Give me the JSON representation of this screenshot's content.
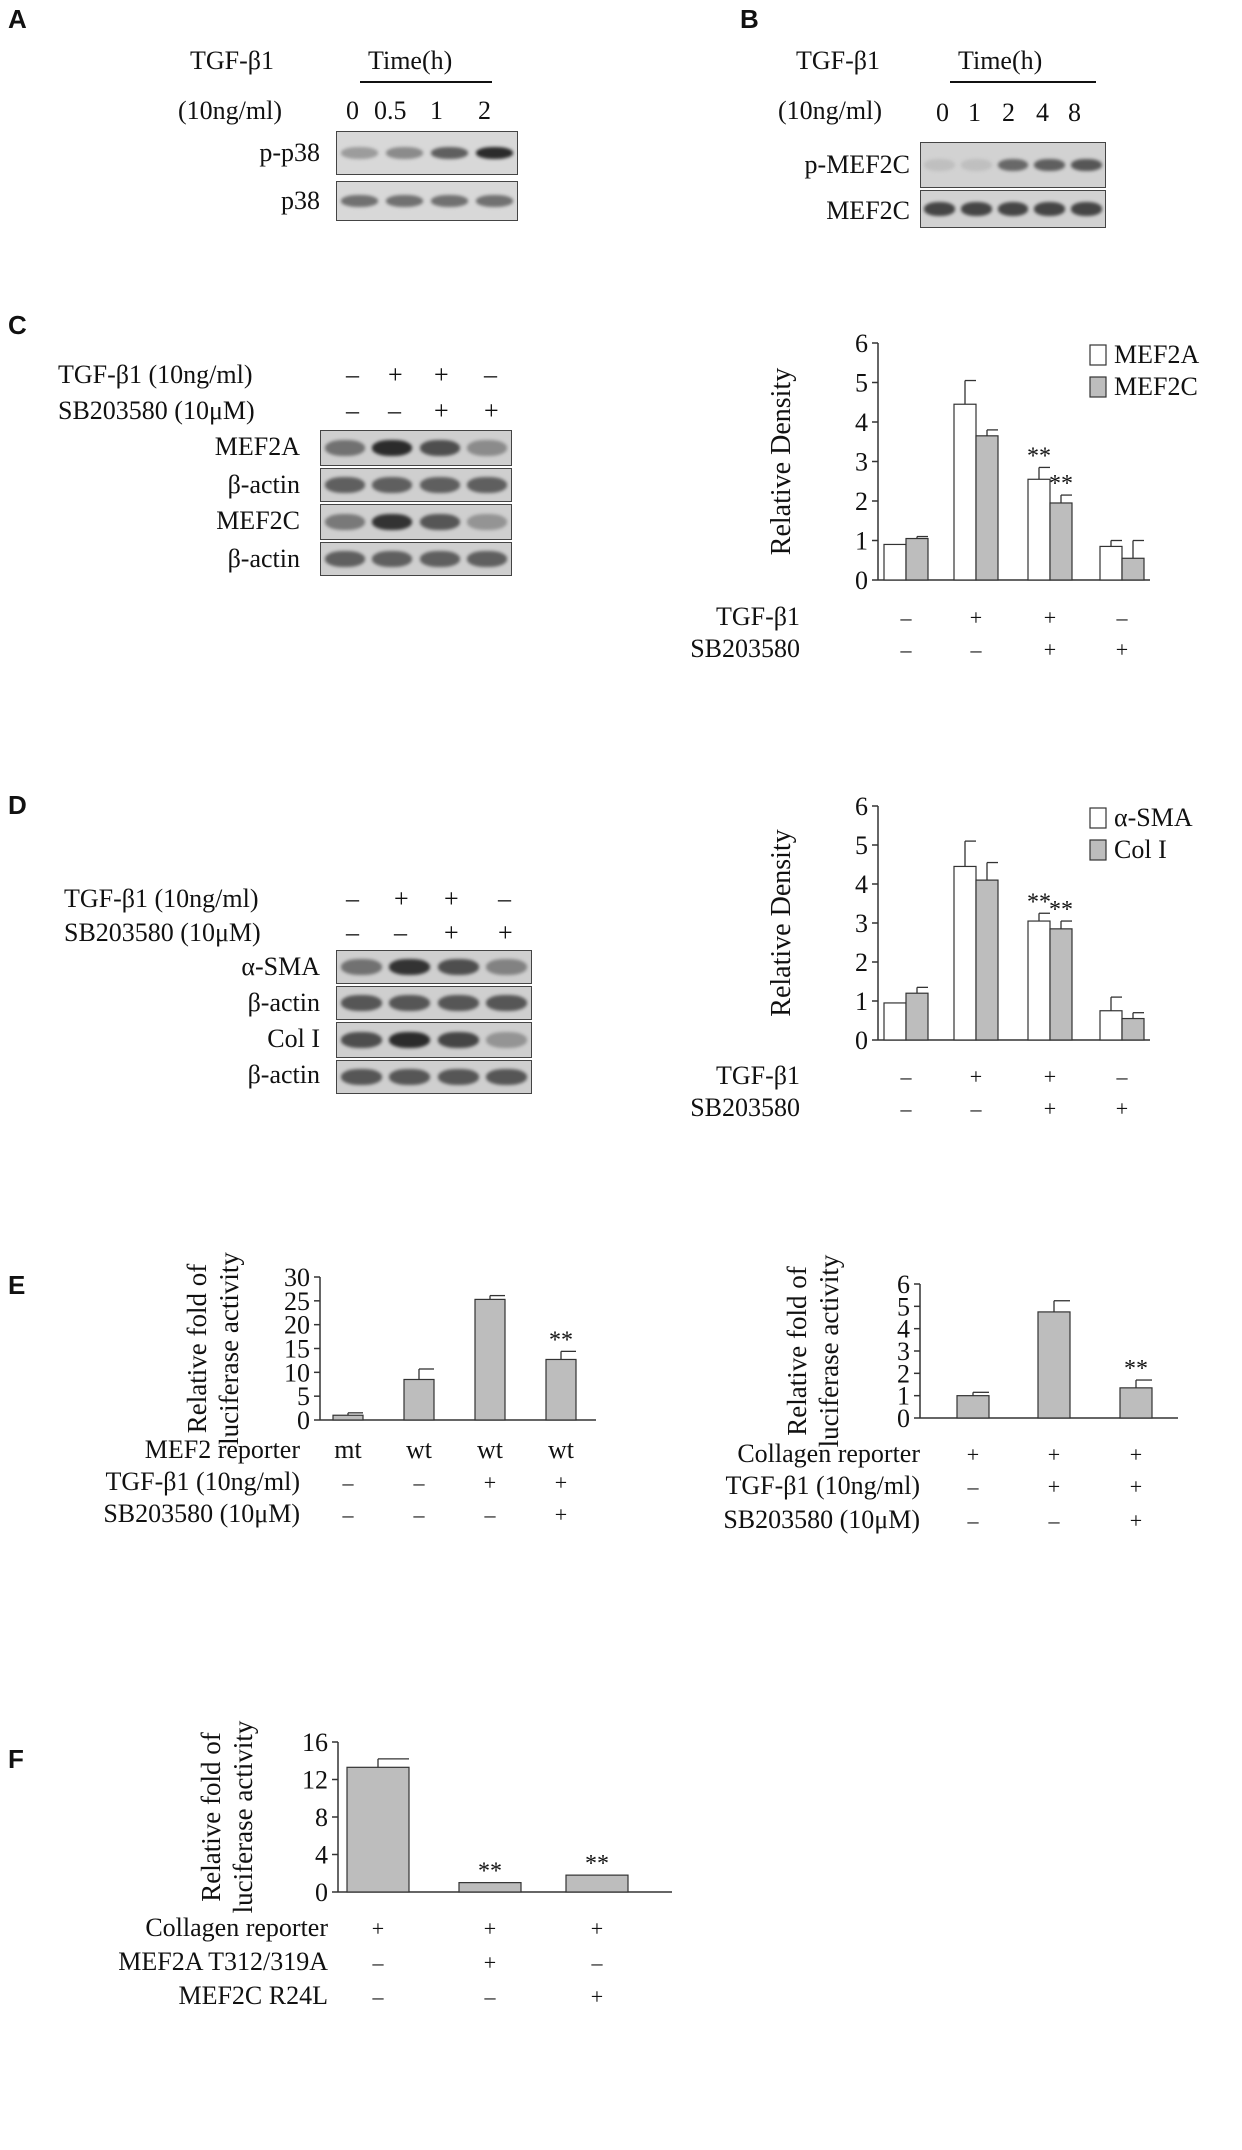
{
  "panels": {
    "A": {
      "label": "A",
      "treat_line1": "TGF-β1",
      "treat_line2": "(10ng/ml)",
      "time_header": "Time(h)",
      "times": [
        "0",
        "0.5",
        "1",
        "2"
      ],
      "rows": [
        "p-p38",
        "p38"
      ],
      "band_intensity": {
        "p-p38": [
          0.25,
          0.35,
          0.6,
          0.9
        ],
        "p38": [
          0.5,
          0.5,
          0.5,
          0.5
        ]
      }
    },
    "B": {
      "label": "B",
      "treat_line1": "TGF-β1",
      "treat_line2": "(10ng/ml)",
      "time_header": "Time(h)",
      "times": [
        "0",
        "1",
        "2",
        "4",
        "8"
      ],
      "rows": [
        "p-MEF2C",
        "MEF2C"
      ],
      "band_intensity": {
        "p-MEF2C": [
          0.05,
          0.05,
          0.55,
          0.6,
          0.65
        ],
        "MEF2C": [
          0.75,
          0.75,
          0.75,
          0.75,
          0.75
        ]
      }
    },
    "C": {
      "label": "C",
      "blot_treat": [
        {
          "name": "TGF-β1 (10ng/ml)",
          "signs": [
            "–",
            "+",
            "+",
            "–"
          ]
        },
        {
          "name": "SB203580 (10μM)",
          "signs": [
            "–",
            "–",
            "+",
            "+"
          ]
        }
      ],
      "rows": [
        "MEF2A",
        "β-actin",
        "MEF2C",
        "β-actin"
      ],
      "band_intensity": [
        [
          0.5,
          0.9,
          0.7,
          0.35
        ],
        [
          0.6,
          0.6,
          0.6,
          0.6
        ],
        [
          0.45,
          0.85,
          0.65,
          0.3
        ],
        [
          0.6,
          0.6,
          0.6,
          0.6
        ]
      ]
    },
    "D": {
      "label": "D",
      "blot_treat": [
        {
          "name": "TGF-β1 (10ng/ml)",
          "signs": [
            "–",
            "+",
            "+",
            "–"
          ]
        },
        {
          "name": "SB203580 (10μM)",
          "signs": [
            "–",
            "–",
            "+",
            "+"
          ]
        }
      ],
      "rows": [
        "α-SMA",
        "β-actin",
        "Col I",
        "β-actin"
      ],
      "band_intensity": [
        [
          0.5,
          0.85,
          0.7,
          0.4
        ],
        [
          0.65,
          0.65,
          0.65,
          0.65
        ],
        [
          0.7,
          0.9,
          0.75,
          0.3
        ],
        [
          0.65,
          0.65,
          0.65,
          0.65
        ]
      ]
    },
    "E": {
      "label": "E"
    },
    "F": {
      "label": "F"
    }
  },
  "chart_data": [
    {
      "id": "C-chart",
      "type": "bar",
      "ylabel": "Relative Density",
      "ylim": [
        0,
        6
      ],
      "yticks": [
        "0",
        "1",
        "2",
        "3",
        "4",
        "5",
        "6"
      ],
      "groups": 4,
      "treatments": [
        {
          "name": "TGF-β1",
          "signs": [
            "–",
            "+",
            "+",
            "–"
          ]
        },
        {
          "name": "SB203580",
          "signs": [
            "–",
            "–",
            "+",
            "+"
          ]
        }
      ],
      "series": [
        {
          "name": "MEF2A",
          "color": "#ffffff",
          "values": [
            0.9,
            4.45,
            2.55,
            0.85
          ],
          "errors": [
            0.0,
            0.6,
            0.3,
            0.15
          ]
        },
        {
          "name": "MEF2C",
          "color": "#bdbdbd",
          "values": [
            1.05,
            3.65,
            1.95,
            0.55
          ],
          "errors": [
            0.05,
            0.15,
            0.2,
            0.45
          ]
        }
      ],
      "annotations": [
        {
          "group": 2,
          "series": 0,
          "text": "**"
        },
        {
          "group": 2,
          "series": 1,
          "text": "**"
        }
      ],
      "legend_position": "top-right"
    },
    {
      "id": "D-chart",
      "type": "bar",
      "ylabel": "Relative Density",
      "ylim": [
        0,
        6
      ],
      "yticks": [
        "0",
        "1",
        "2",
        "3",
        "4",
        "5",
        "6"
      ],
      "groups": 4,
      "treatments": [
        {
          "name": "TGF-β1",
          "signs": [
            "–",
            "+",
            "+",
            "–"
          ]
        },
        {
          "name": "SB203580",
          "signs": [
            "–",
            "–",
            "+",
            "+"
          ]
        }
      ],
      "series": [
        {
          "name": "α-SMA",
          "color": "#ffffff",
          "values": [
            0.95,
            4.45,
            3.05,
            0.75
          ],
          "errors": [
            0.0,
            0.65,
            0.2,
            0.35
          ]
        },
        {
          "name": "Col I",
          "color": "#bdbdbd",
          "values": [
            1.2,
            4.1,
            2.85,
            0.55
          ],
          "errors": [
            0.15,
            0.45,
            0.2,
            0.15
          ]
        }
      ],
      "annotations": [
        {
          "group": 2,
          "series": 0,
          "text": "**"
        },
        {
          "group": 2,
          "series": 1,
          "text": "**"
        }
      ],
      "legend_position": "top-right"
    },
    {
      "id": "E1-chart",
      "type": "bar",
      "ylabel": "Relative fold of luciferase activity",
      "ylim": [
        0,
        30
      ],
      "yticks": [
        "0",
        "5",
        "10",
        "15",
        "20",
        "25",
        "30"
      ],
      "groups": 4,
      "treatments": [
        {
          "name": "MEF2 reporter",
          "signs": [
            "mt",
            "wt",
            "wt",
            "wt"
          ]
        },
        {
          "name": "TGF-β1 (10ng/ml)",
          "signs": [
            "–",
            "–",
            "+",
            "+"
          ]
        },
        {
          "name": "SB203580 (10μM)",
          "signs": [
            "–",
            "–",
            "–",
            "+"
          ]
        }
      ],
      "series": [
        {
          "name": "",
          "color": "#bdbdbd",
          "values": [
            1.0,
            8.5,
            25.3,
            12.7
          ],
          "errors": [
            0.5,
            2.2,
            0.8,
            1.7
          ]
        }
      ],
      "annotations": [
        {
          "group": 3,
          "series": 0,
          "text": "**"
        }
      ]
    },
    {
      "id": "E2-chart",
      "type": "bar",
      "ylabel": "Relative fold of luciferase activity",
      "ylim": [
        0,
        6
      ],
      "yticks": [
        "0",
        "1",
        "2",
        "3",
        "4",
        "5",
        "6"
      ],
      "groups": 3,
      "treatments": [
        {
          "name": "Collagen reporter",
          "signs": [
            "+",
            "+",
            "+"
          ]
        },
        {
          "name": "TGF-β1 (10ng/ml)",
          "signs": [
            "–",
            "+",
            "+"
          ]
        },
        {
          "name": "SB203580 (10μM)",
          "signs": [
            "–",
            "–",
            "+"
          ]
        }
      ],
      "series": [
        {
          "name": "",
          "color": "#bdbdbd",
          "values": [
            1.0,
            4.75,
            1.35
          ],
          "errors": [
            0.15,
            0.5,
            0.35
          ]
        }
      ],
      "annotations": [
        {
          "group": 2,
          "series": 0,
          "text": "**"
        }
      ]
    },
    {
      "id": "F-chart",
      "type": "bar",
      "ylabel": "Relative fold of luciferase activity",
      "ylim": [
        0,
        16
      ],
      "yticks": [
        "0",
        "4",
        "8",
        "12",
        "16"
      ],
      "groups": 3,
      "treatments": [
        {
          "name": "Collagen reporter",
          "signs": [
            "+",
            "+",
            "+"
          ]
        },
        {
          "name": "MEF2A T312/319A",
          "signs": [
            "–",
            "+",
            "–"
          ]
        },
        {
          "name": "MEF2C R24L",
          "signs": [
            "–",
            "–",
            "+"
          ]
        }
      ],
      "series": [
        {
          "name": "",
          "color": "#bdbdbd",
          "values": [
            13.3,
            1.0,
            1.8
          ],
          "errors": [
            0.9,
            0.0,
            0.0
          ]
        }
      ],
      "annotations": [
        {
          "group": 1,
          "series": 0,
          "text": "**"
        },
        {
          "group": 2,
          "series": 0,
          "text": "**"
        }
      ]
    }
  ]
}
